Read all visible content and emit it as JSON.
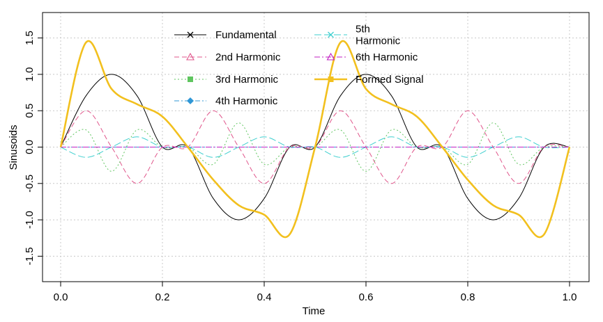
{
  "chart_data": {
    "type": "line",
    "title": "",
    "xlabel": "Time",
    "ylabel": "Sinusoids",
    "xlim": [
      0,
      1
    ],
    "ylim": [
      -1.85,
      1.85
    ],
    "grid": true,
    "legend_placement": "top-center",
    "x_ticks": [
      0.0,
      0.2,
      0.4,
      0.6,
      0.8,
      1.0
    ],
    "x_tick_labels": [
      "0.0",
      "0.2",
      "0.4",
      "0.6",
      "0.8",
      "1.0"
    ],
    "y_ticks": [
      -1.5,
      -1.0,
      -0.5,
      0.0,
      0.5,
      1.0,
      1.5
    ],
    "y_tick_labels": [
      "-1.5",
      "-1.0",
      "-0.5",
      "0.0",
      "0.5",
      "1.0",
      "1.5"
    ],
    "x_samples": [
      0.0,
      0.05,
      0.1,
      0.15,
      0.2,
      0.25,
      0.3,
      0.35,
      0.4,
      0.45,
      0.5,
      0.55,
      0.6,
      0.65,
      0.7,
      0.75,
      0.8,
      0.85,
      0.9,
      0.95,
      1.0
    ],
    "series": [
      {
        "name": "Fundamental",
        "color": "#000000",
        "marker": "cross",
        "dash": "",
        "width": 1,
        "values": [
          0.0,
          0.707,
          1.0,
          0.707,
          0.0,
          0.0,
          -0.707,
          -1.0,
          -0.707,
          0.0,
          0.0,
          0.707,
          1.0,
          0.707,
          0.0,
          0.0,
          -0.707,
          -1.0,
          -0.707,
          0.0,
          0.0
        ]
      },
      {
        "name": "2nd Harmonic",
        "color": "#e0558b",
        "marker": "triangle",
        "dash": "7 4",
        "width": 1,
        "values": [
          0.0,
          0.5,
          0.0,
          -0.5,
          0.0,
          0.0,
          0.5,
          0.0,
          -0.5,
          0.0,
          0.0,
          0.5,
          0.0,
          -0.5,
          0.0,
          0.0,
          0.5,
          0.0,
          -0.5,
          0.0,
          0.0
        ]
      },
      {
        "name": "3rd Harmonic",
        "color": "#5fc55f",
        "marker": "square",
        "dash": "2 3",
        "width": 1,
        "values": [
          0.0,
          0.236,
          -0.333,
          0.236,
          0.0,
          0.0,
          -0.236,
          0.333,
          -0.236,
          0.0,
          0.0,
          0.236,
          -0.333,
          0.236,
          0.0,
          0.0,
          -0.236,
          0.333,
          -0.236,
          0.0,
          0.0
        ]
      },
      {
        "name": "4th Harmonic",
        "color": "#2f97d6",
        "marker": "diamond",
        "dash": "7 3 2 3",
        "width": 1,
        "values": [
          0.0,
          0.0,
          0.0,
          0.0,
          0.0,
          0.0,
          0.0,
          0.0,
          0.0,
          0.0,
          0.0,
          0.0,
          0.0,
          0.0,
          0.0,
          0.0,
          0.0,
          0.0,
          0.0,
          0.0,
          0.0
        ]
      },
      {
        "name": "5th\nHarmonic",
        "color": "#3ecfcf",
        "marker": "cross",
        "dash": "10 4",
        "width": 1,
        "values": [
          0.0,
          -0.141,
          0.0,
          0.141,
          0.0,
          0.0,
          -0.141,
          0.0,
          0.141,
          0.0,
          0.0,
          -0.141,
          0.0,
          0.141,
          0.0,
          0.0,
          -0.141,
          0.0,
          0.141,
          0.0,
          0.0
        ]
      },
      {
        "name": "6th Harmonic",
        "color": "#c21fc2",
        "marker": "triangle",
        "dash": "8 3 2 3",
        "width": 1,
        "values": [
          0.0,
          0.0,
          0.0,
          0.0,
          0.0,
          0.0,
          0.0,
          0.0,
          0.0,
          0.0,
          0.0,
          0.0,
          0.0,
          0.0,
          0.0,
          0.0,
          0.0,
          0.0,
          0.0,
          0.0,
          0.0
        ]
      },
      {
        "name": "Formed Signal",
        "color": "#f2c01e",
        "marker": "square",
        "dash": "",
        "width": 2.6,
        "values": [
          0.0,
          1.44,
          0.8,
          0.59,
          0.42,
          0.0,
          -0.45,
          -0.8,
          -0.93,
          -1.2,
          0.0,
          1.44,
          0.8,
          0.59,
          0.42,
          0.0,
          -0.45,
          -0.8,
          -0.93,
          -1.2,
          0.0
        ]
      }
    ]
  }
}
